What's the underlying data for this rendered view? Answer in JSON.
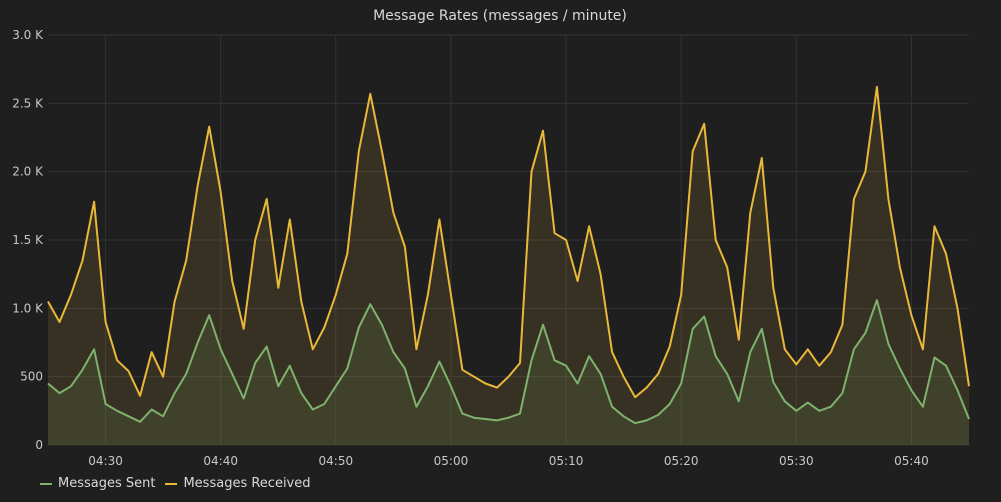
{
  "chart_data": {
    "type": "area",
    "title": "Message Rates (messages / minute)",
    "xlabel": "",
    "ylabel": "",
    "x_range_minutes": [
      "04:25",
      "05:45"
    ],
    "x_ticks": [
      "04:30",
      "04:40",
      "04:50",
      "05:00",
      "05:10",
      "05:20",
      "05:30",
      "05:40"
    ],
    "y_ticks": [
      "0",
      "500",
      "1.0 K",
      "1.5 K",
      "2.0 K",
      "2.5 K",
      "3.0 K"
    ],
    "ylim": [
      0,
      3000
    ],
    "grid": true,
    "legend_position": "bottom-left",
    "series": [
      {
        "name": "Messages Received",
        "color": "#eab839",
        "points": [
          [
            "04:25",
            1050
          ],
          [
            "04:26",
            900
          ],
          [
            "04:27",
            1100
          ],
          [
            "04:28",
            1350
          ],
          [
            "04:29",
            1780
          ],
          [
            "04:30",
            900
          ],
          [
            "04:31",
            620
          ],
          [
            "04:32",
            540
          ],
          [
            "04:33",
            360
          ],
          [
            "04:34",
            680
          ],
          [
            "04:35",
            500
          ],
          [
            "04:36",
            1050
          ],
          [
            "04:37",
            1350
          ],
          [
            "04:38",
            1900
          ],
          [
            "04:39",
            2330
          ],
          [
            "04:40",
            1850
          ],
          [
            "04:41",
            1200
          ],
          [
            "04:42",
            850
          ],
          [
            "04:43",
            1500
          ],
          [
            "04:44",
            1800
          ],
          [
            "04:45",
            1150
          ],
          [
            "04:46",
            1650
          ],
          [
            "04:47",
            1050
          ],
          [
            "04:48",
            700
          ],
          [
            "04:49",
            860
          ],
          [
            "04:50",
            1100
          ],
          [
            "04:51",
            1400
          ],
          [
            "04:52",
            2150
          ],
          [
            "04:53",
            2570
          ],
          [
            "04:54",
            2150
          ],
          [
            "04:55",
            1700
          ],
          [
            "04:56",
            1450
          ],
          [
            "04:57",
            700
          ],
          [
            "04:58",
            1100
          ],
          [
            "04:59",
            1650
          ],
          [
            "05:00",
            1100
          ],
          [
            "05:01",
            550
          ],
          [
            "05:02",
            500
          ],
          [
            "05:03",
            450
          ],
          [
            "05:04",
            420
          ],
          [
            "05:05",
            500
          ],
          [
            "05:06",
            600
          ],
          [
            "05:07",
            2000
          ],
          [
            "05:08",
            2300
          ],
          [
            "05:09",
            1550
          ],
          [
            "05:10",
            1500
          ],
          [
            "05:11",
            1200
          ],
          [
            "05:12",
            1600
          ],
          [
            "05:13",
            1250
          ],
          [
            "05:14",
            680
          ],
          [
            "05:15",
            500
          ],
          [
            "05:16",
            350
          ],
          [
            "05:17",
            420
          ],
          [
            "05:18",
            520
          ],
          [
            "05:19",
            720
          ],
          [
            "05:20",
            1100
          ],
          [
            "05:21",
            2150
          ],
          [
            "05:22",
            2350
          ],
          [
            "05:23",
            1500
          ],
          [
            "05:24",
            1300
          ],
          [
            "05:25",
            770
          ],
          [
            "05:26",
            1700
          ],
          [
            "05:27",
            2100
          ],
          [
            "05:28",
            1150
          ],
          [
            "05:29",
            700
          ],
          [
            "05:30",
            590
          ],
          [
            "05:31",
            700
          ],
          [
            "05:32",
            580
          ],
          [
            "05:33",
            680
          ],
          [
            "05:34",
            880
          ],
          [
            "05:35",
            1800
          ],
          [
            "05:36",
            2000
          ],
          [
            "05:37",
            2620
          ],
          [
            "05:38",
            1800
          ],
          [
            "05:39",
            1300
          ],
          [
            "05:40",
            950
          ],
          [
            "05:41",
            700
          ],
          [
            "05:42",
            1600
          ],
          [
            "05:43",
            1400
          ],
          [
            "05:44",
            1000
          ],
          [
            "05:45",
            430
          ]
        ]
      },
      {
        "name": "Messages Sent",
        "color": "#7eb26d",
        "points": [
          [
            "04:25",
            450
          ],
          [
            "04:26",
            380
          ],
          [
            "04:27",
            430
          ],
          [
            "04:28",
            550
          ],
          [
            "04:29",
            700
          ],
          [
            "04:30",
            300
          ],
          [
            "04:31",
            250
          ],
          [
            "04:32",
            210
          ],
          [
            "04:33",
            170
          ],
          [
            "04:34",
            260
          ],
          [
            "04:35",
            210
          ],
          [
            "04:36",
            380
          ],
          [
            "04:37",
            520
          ],
          [
            "04:38",
            750
          ],
          [
            "04:39",
            950
          ],
          [
            "04:40",
            700
          ],
          [
            "04:41",
            520
          ],
          [
            "04:42",
            340
          ],
          [
            "04:43",
            600
          ],
          [
            "04:44",
            720
          ],
          [
            "04:45",
            430
          ],
          [
            "04:46",
            580
          ],
          [
            "04:47",
            380
          ],
          [
            "04:48",
            260
          ],
          [
            "04:49",
            300
          ],
          [
            "04:50",
            430
          ],
          [
            "04:51",
            560
          ],
          [
            "04:52",
            860
          ],
          [
            "04:53",
            1030
          ],
          [
            "04:54",
            880
          ],
          [
            "04:55",
            680
          ],
          [
            "04:56",
            560
          ],
          [
            "04:57",
            280
          ],
          [
            "04:58",
            430
          ],
          [
            "04:59",
            610
          ],
          [
            "05:00",
            430
          ],
          [
            "05:01",
            230
          ],
          [
            "05:02",
            200
          ],
          [
            "05:03",
            190
          ],
          [
            "05:04",
            180
          ],
          [
            "05:05",
            200
          ],
          [
            "05:06",
            230
          ],
          [
            "05:07",
            620
          ],
          [
            "05:08",
            880
          ],
          [
            "05:09",
            620
          ],
          [
            "05:10",
            580
          ],
          [
            "05:11",
            450
          ],
          [
            "05:12",
            650
          ],
          [
            "05:13",
            520
          ],
          [
            "05:14",
            280
          ],
          [
            "05:15",
            210
          ],
          [
            "05:16",
            160
          ],
          [
            "05:17",
            180
          ],
          [
            "05:18",
            220
          ],
          [
            "05:19",
            300
          ],
          [
            "05:20",
            450
          ],
          [
            "05:21",
            850
          ],
          [
            "05:22",
            940
          ],
          [
            "05:23",
            650
          ],
          [
            "05:24",
            520
          ],
          [
            "05:25",
            320
          ],
          [
            "05:26",
            680
          ],
          [
            "05:27",
            850
          ],
          [
            "05:28",
            460
          ],
          [
            "05:29",
            320
          ],
          [
            "05:30",
            250
          ],
          [
            "05:31",
            310
          ],
          [
            "05:32",
            250
          ],
          [
            "05:33",
            280
          ],
          [
            "05:34",
            380
          ],
          [
            "05:35",
            700
          ],
          [
            "05:36",
            820
          ],
          [
            "05:37",
            1060
          ],
          [
            "05:38",
            740
          ],
          [
            "05:39",
            560
          ],
          [
            "05:40",
            400
          ],
          [
            "05:41",
            280
          ],
          [
            "05:42",
            640
          ],
          [
            "05:43",
            580
          ],
          [
            "05:44",
            400
          ],
          [
            "05:45",
            190
          ]
        ]
      }
    ]
  },
  "legend": [
    {
      "label": "Messages Sent",
      "color": "#7eb26d"
    },
    {
      "label": "Messages Received",
      "color": "#eab839"
    }
  ]
}
